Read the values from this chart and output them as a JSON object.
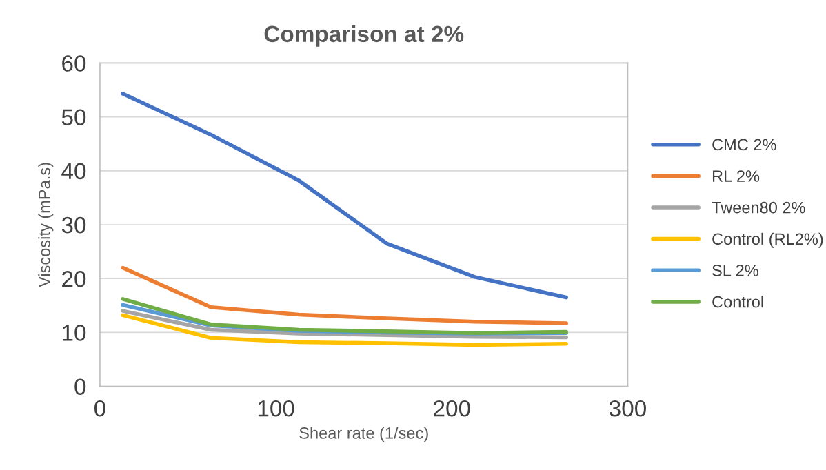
{
  "chart_data": {
    "type": "line",
    "title": "Comparison at 2%",
    "xlabel": "Shear rate (1/sec)",
    "ylabel": "Viscosity (mPa.s)",
    "x": [
      13,
      63,
      113,
      163,
      213,
      265
    ],
    "series": [
      {
        "name": "CMC 2%",
        "color": "#4472c4",
        "values": [
          54.3,
          46.7,
          38.2,
          26.5,
          20.3,
          16.5
        ]
      },
      {
        "name": "RL 2%",
        "color": "#ed7d31",
        "values": [
          22.0,
          14.7,
          13.3,
          12.6,
          12.0,
          11.7
        ]
      },
      {
        "name": "Tween80 2%",
        "color": "#a5a5a5",
        "values": [
          14.0,
          10.5,
          9.8,
          9.5,
          9.2,
          9.1
        ]
      },
      {
        "name": "Control (RL2%)",
        "color": "#ffc000",
        "values": [
          13.2,
          9.0,
          8.2,
          8.0,
          7.7,
          7.9
        ]
      },
      {
        "name": "SL 2%",
        "color": "#5b9bd5",
        "values": [
          15.1,
          11.3,
          10.3,
          10.0,
          9.8,
          9.9
        ]
      },
      {
        "name": "Control",
        "color": "#70ad47",
        "values": [
          16.2,
          11.5,
          10.5,
          10.2,
          9.9,
          10.1
        ]
      }
    ],
    "xlim": [
      0,
      300
    ],
    "xticks": [
      0,
      100,
      200,
      300
    ],
    "ylim": [
      0,
      60
    ],
    "yticks": [
      0,
      10,
      20,
      30,
      40,
      50,
      60
    ],
    "grid": "y",
    "legend": "right",
    "marker": "none",
    "line_style": "solid"
  }
}
